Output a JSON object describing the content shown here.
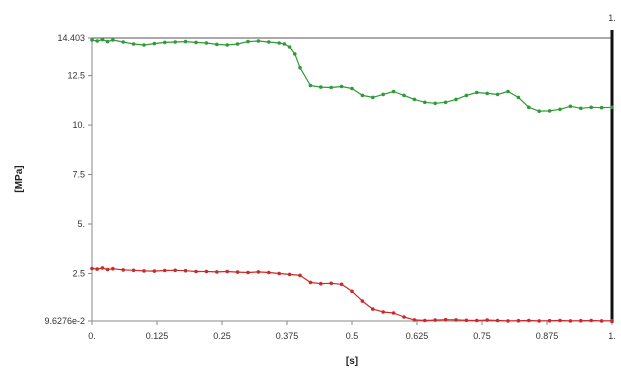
{
  "chart_data": {
    "type": "line",
    "xlabel": "[s]",
    "ylabel": "[MPa]",
    "corner_label": "1.",
    "xlim": [
      0,
      1
    ],
    "ylim": [
      0.096276,
      14.403
    ],
    "x_ticks": [
      0,
      0.125,
      0.25,
      0.375,
      0.5,
      0.625,
      0.75,
      0.875,
      1
    ],
    "x_tick_labels": [
      "0.",
      "0.125",
      "0.25",
      "0.375",
      "0.5",
      "0.625",
      "0.75",
      "0.875",
      "1."
    ],
    "y_ticks": [
      0.096276,
      2.5,
      5,
      7.5,
      10,
      12.5,
      14.403
    ],
    "y_tick_labels": [
      "9.6276e-2",
      "2.5",
      "5.",
      "7.5",
      "10.",
      "12.5",
      "14.403"
    ],
    "grid": false,
    "series": [
      {
        "color": "#2e9a38",
        "x": [
          0.0,
          0.01,
          0.02,
          0.03,
          0.04,
          0.06,
          0.08,
          0.1,
          0.12,
          0.14,
          0.16,
          0.18,
          0.2,
          0.22,
          0.24,
          0.26,
          0.28,
          0.3,
          0.32,
          0.34,
          0.36,
          0.37,
          0.38,
          0.39,
          0.4,
          0.42,
          0.44,
          0.46,
          0.48,
          0.5,
          0.52,
          0.54,
          0.56,
          0.58,
          0.6,
          0.62,
          0.64,
          0.66,
          0.68,
          0.7,
          0.72,
          0.74,
          0.76,
          0.78,
          0.8,
          0.82,
          0.84,
          0.86,
          0.88,
          0.9,
          0.92,
          0.94,
          0.96,
          0.98,
          1.0
        ],
        "y": [
          14.3,
          14.25,
          14.32,
          14.22,
          14.3,
          14.2,
          14.1,
          14.05,
          14.12,
          14.18,
          14.2,
          14.22,
          14.18,
          14.15,
          14.08,
          14.05,
          14.1,
          14.22,
          14.25,
          14.2,
          14.15,
          14.1,
          13.95,
          13.6,
          12.9,
          12.0,
          11.92,
          11.9,
          11.95,
          11.85,
          11.5,
          11.4,
          11.55,
          11.7,
          11.5,
          11.3,
          11.15,
          11.1,
          11.15,
          11.3,
          11.5,
          11.65,
          11.6,
          11.55,
          11.7,
          11.4,
          10.9,
          10.7,
          10.72,
          10.8,
          10.95,
          10.85,
          10.9,
          10.88,
          10.9
        ]
      },
      {
        "color": "#cc2a2a",
        "x": [
          0.0,
          0.01,
          0.02,
          0.03,
          0.04,
          0.06,
          0.08,
          0.1,
          0.12,
          0.14,
          0.16,
          0.18,
          0.2,
          0.22,
          0.24,
          0.26,
          0.28,
          0.3,
          0.32,
          0.34,
          0.36,
          0.38,
          0.4,
          0.42,
          0.44,
          0.46,
          0.48,
          0.5,
          0.52,
          0.54,
          0.56,
          0.58,
          0.6,
          0.62,
          0.64,
          0.66,
          0.68,
          0.7,
          0.72,
          0.74,
          0.76,
          0.78,
          0.8,
          0.82,
          0.84,
          0.86,
          0.88,
          0.9,
          0.92,
          0.94,
          0.96,
          0.98,
          1.0
        ],
        "y": [
          2.75,
          2.72,
          2.78,
          2.7,
          2.74,
          2.68,
          2.66,
          2.63,
          2.62,
          2.65,
          2.66,
          2.64,
          2.6,
          2.6,
          2.58,
          2.6,
          2.57,
          2.55,
          2.58,
          2.55,
          2.5,
          2.45,
          2.4,
          2.05,
          1.98,
          2.0,
          1.95,
          1.6,
          1.1,
          0.7,
          0.55,
          0.5,
          0.3,
          0.15,
          0.12,
          0.14,
          0.16,
          0.15,
          0.13,
          0.12,
          0.14,
          0.12,
          0.1,
          0.11,
          0.12,
          0.1,
          0.11,
          0.12,
          0.1,
          0.11,
          0.12,
          0.1,
          0.11
        ]
      }
    ]
  }
}
